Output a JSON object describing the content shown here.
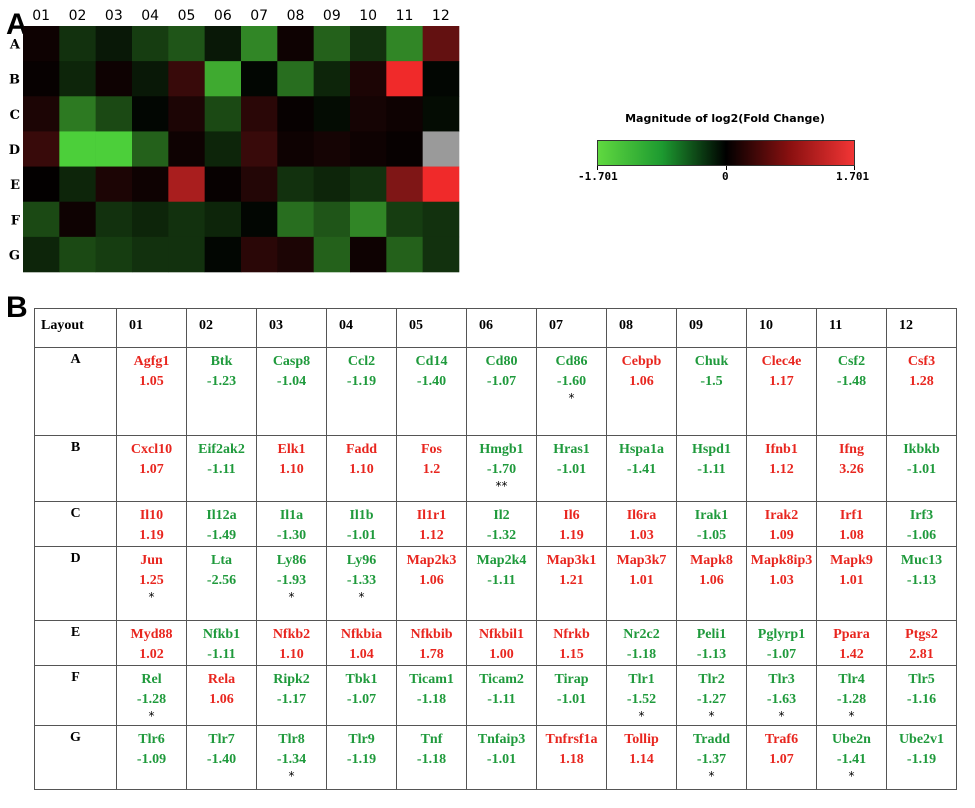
{
  "panel_a": {
    "label": "A",
    "legend": {
      "title": "Magnitude of log2(Fold Change)",
      "min_label": "-1.701",
      "mid_label": "0",
      "max_label": "1.701"
    }
  },
  "panel_b": {
    "label": "B",
    "corner_label": "Layout"
  },
  "chart_data": {
    "type": "heatmap",
    "columns": [
      "01",
      "02",
      "03",
      "04",
      "05",
      "06",
      "07",
      "08",
      "09",
      "10",
      "11",
      "12"
    ],
    "rows": [
      "A",
      "B",
      "C",
      "D",
      "E",
      "F",
      "G"
    ],
    "value_range": [
      -1.701,
      1.701
    ],
    "colors": {
      "negative": "#4ccf3a",
      "zero": "#000000",
      "positive": "#f02a2a",
      "missing": "#9a9a9a",
      "up_text": "#e8261f",
      "down_text": "#1f9a3c"
    },
    "values": [
      [
        0.1,
        -0.4,
        -0.2,
        -0.5,
        -0.7,
        -0.2,
        -1.1,
        0.1,
        -0.8,
        -0.4,
        -1.1,
        0.7
      ],
      [
        0.05,
        -0.3,
        0.1,
        -0.2,
        0.4,
        -1.4,
        -0.05,
        -0.9,
        -0.3,
        0.2,
        1.701,
        -0.05
      ],
      [
        0.2,
        -1.0,
        -0.6,
        -0.05,
        0.2,
        -0.6,
        0.3,
        0.05,
        -0.1,
        0.15,
        0.1,
        -0.1
      ],
      [
        0.4,
        -1.701,
        -1.701,
        -0.8,
        0.1,
        -0.3,
        0.4,
        0.1,
        0.15,
        0.1,
        0.05,
        null
      ],
      [
        0.02,
        -0.3,
        0.2,
        0.1,
        1.2,
        0.05,
        0.25,
        -0.4,
        -0.3,
        -0.4,
        0.9,
        1.701
      ],
      [
        -0.6,
        0.1,
        -0.4,
        -0.3,
        -0.4,
        -0.3,
        -0.05,
        -0.9,
        -0.7,
        -1.1,
        -0.5,
        -0.4
      ],
      [
        -0.3,
        -0.6,
        -0.5,
        -0.4,
        -0.4,
        -0.05,
        0.3,
        0.2,
        -0.8,
        0.1,
        -0.8,
        -0.4
      ]
    ],
    "table": [
      [
        {
          "name": "Agfg1",
          "value": "1.05",
          "star": ""
        },
        {
          "name": "Btk",
          "value": "-1.23",
          "star": ""
        },
        {
          "name": "Casp8",
          "value": "-1.04",
          "star": ""
        },
        {
          "name": "Ccl2",
          "value": "-1.19",
          "star": ""
        },
        {
          "name": "Cd14",
          "value": "-1.40",
          "star": ""
        },
        {
          "name": "Cd80",
          "value": "-1.07",
          "star": ""
        },
        {
          "name": "Cd86",
          "value": "-1.60",
          "star": "*"
        },
        {
          "name": "Cebpb",
          "value": "1.06",
          "star": ""
        },
        {
          "name": "Chuk",
          "value": "-1.5",
          "star": ""
        },
        {
          "name": "Clec4e",
          "value": "1.17",
          "star": ""
        },
        {
          "name": "Csf2",
          "value": "-1.48",
          "star": ""
        },
        {
          "name": "Csf3",
          "value": "1.28",
          "star": ""
        }
      ],
      [
        {
          "name": "Cxcl10",
          "value": "1.07",
          "star": ""
        },
        {
          "name": "Eif2ak2",
          "value": "-1.11",
          "star": ""
        },
        {
          "name": "Elk1",
          "value": "1.10",
          "star": ""
        },
        {
          "name": "Fadd",
          "value": "1.10",
          "star": ""
        },
        {
          "name": "Fos",
          "value": "1.2",
          "star": ""
        },
        {
          "name": "Hmgb1",
          "value": "-1.70",
          "star": "**"
        },
        {
          "name": "Hras1",
          "value": "-1.01",
          "star": ""
        },
        {
          "name": "Hspa1a",
          "value": "-1.41",
          "star": ""
        },
        {
          "name": "Hspd1",
          "value": "-1.11",
          "star": ""
        },
        {
          "name": "Ifnb1",
          "value": "1.12",
          "star": ""
        },
        {
          "name": "Ifng",
          "value": "3.26",
          "star": ""
        },
        {
          "name": "Ikbkb",
          "value": "-1.01",
          "star": ""
        }
      ],
      [
        {
          "name": "Il10",
          "value": "1.19",
          "star": ""
        },
        {
          "name": "Il12a",
          "value": "-1.49",
          "star": ""
        },
        {
          "name": "Il1a",
          "value": "-1.30",
          "star": ""
        },
        {
          "name": "Il1b",
          "value": "-1.01",
          "star": ""
        },
        {
          "name": "Il1r1",
          "value": "1.12",
          "star": ""
        },
        {
          "name": "Il2",
          "value": "-1.32",
          "star": ""
        },
        {
          "name": "Il6",
          "value": "1.19",
          "star": ""
        },
        {
          "name": "Il6ra",
          "value": "1.03",
          "star": ""
        },
        {
          "name": "Irak1",
          "value": "-1.05",
          "star": ""
        },
        {
          "name": "Irak2",
          "value": "1.09",
          "star": ""
        },
        {
          "name": "Irf1",
          "value": "1.08",
          "star": ""
        },
        {
          "name": "Irf3",
          "value": "-1.06",
          "star": ""
        }
      ],
      [
        {
          "name": "Jun",
          "value": "1.25",
          "star": "*"
        },
        {
          "name": "Lta",
          "value": "-2.56",
          "star": ""
        },
        {
          "name": "Ly86",
          "value": "-1.93",
          "star": "*"
        },
        {
          "name": "Ly96",
          "value": "-1.33",
          "star": "*"
        },
        {
          "name": "Map2k3",
          "value": "1.06",
          "star": ""
        },
        {
          "name": "Map2k4",
          "value": "-1.11",
          "star": ""
        },
        {
          "name": "Map3k1",
          "value": "1.21",
          "star": ""
        },
        {
          "name": "Map3k7",
          "value": "1.01",
          "star": ""
        },
        {
          "name": "Mapk8",
          "value": "1.06",
          "star": ""
        },
        {
          "name": "Mapk8ip3",
          "value": "1.03",
          "star": ""
        },
        {
          "name": "Mapk9",
          "value": "1.01",
          "star": ""
        },
        {
          "name": "Muc13",
          "value": "-1.13",
          "star": ""
        }
      ],
      [
        {
          "name": "Myd88",
          "value": "1.02",
          "star": ""
        },
        {
          "name": "Nfkb1",
          "value": "-1.11",
          "star": ""
        },
        {
          "name": "Nfkb2",
          "value": "1.10",
          "star": ""
        },
        {
          "name": "Nfkbia",
          "value": "1.04",
          "star": ""
        },
        {
          "name": "Nfkbib",
          "value": "1.78",
          "star": ""
        },
        {
          "name": "Nfkbil1",
          "value": "1.00",
          "star": ""
        },
        {
          "name": "Nfrkb",
          "value": "1.15",
          "star": ""
        },
        {
          "name": "Nr2c2",
          "value": "-1.18",
          "star": ""
        },
        {
          "name": "Peli1",
          "value": "-1.13",
          "star": ""
        },
        {
          "name": "Pglyrp1",
          "value": "-1.07",
          "star": ""
        },
        {
          "name": "Ppara",
          "value": "1.42",
          "star": ""
        },
        {
          "name": "Ptgs2",
          "value": "2.81",
          "star": ""
        }
      ],
      [
        {
          "name": "Rel",
          "value": "-1.28",
          "star": "*"
        },
        {
          "name": "Rela",
          "value": "1.06",
          "star": ""
        },
        {
          "name": "Ripk2",
          "value": "-1.17",
          "star": ""
        },
        {
          "name": "Tbk1",
          "value": "-1.07",
          "star": ""
        },
        {
          "name": "Ticam1",
          "value": "-1.18",
          "star": ""
        },
        {
          "name": "Ticam2",
          "value": "-1.11",
          "star": ""
        },
        {
          "name": "Tirap",
          "value": "-1.01",
          "star": ""
        },
        {
          "name": "Tlr1",
          "value": "-1.52",
          "star": "*"
        },
        {
          "name": "Tlr2",
          "value": "-1.27",
          "star": "*"
        },
        {
          "name": "Tlr3",
          "value": "-1.63",
          "star": "*"
        },
        {
          "name": "Tlr4",
          "value": "-1.28",
          "star": "*"
        },
        {
          "name": "Tlr5",
          "value": "-1.16",
          "star": ""
        }
      ],
      [
        {
          "name": "Tlr6",
          "value": "-1.09",
          "star": ""
        },
        {
          "name": "Tlr7",
          "value": "-1.40",
          "star": ""
        },
        {
          "name": "Tlr8",
          "value": "-1.34",
          "star": "*"
        },
        {
          "name": "Tlr9",
          "value": "-1.19",
          "star": ""
        },
        {
          "name": "Tnf",
          "value": "-1.18",
          "star": ""
        },
        {
          "name": "Tnfaip3",
          "value": "-1.01",
          "star": ""
        },
        {
          "name": "Tnfrsf1a",
          "value": "1.18",
          "star": ""
        },
        {
          "name": "Tollip",
          "value": "1.14",
          "star": ""
        },
        {
          "name": "Tradd",
          "value": "-1.37",
          "star": "*"
        },
        {
          "name": "Traf6",
          "value": "1.07",
          "star": ""
        },
        {
          "name": "Ube2n",
          "value": "-1.41",
          "star": "*"
        },
        {
          "name": "Ube2v1",
          "value": "-1.19",
          "star": ""
        }
      ]
    ]
  }
}
